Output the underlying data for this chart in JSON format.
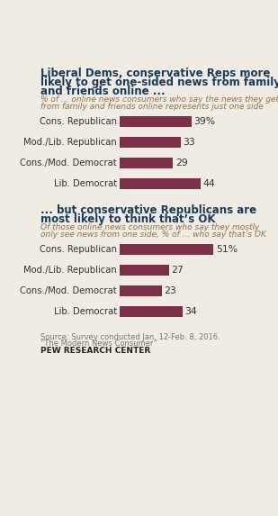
{
  "title1": "Liberal Dems, conservative Reps more\nlikely to get one-sided news from family\nand friends online ...",
  "subtitle1": "% of ... online news consumers who say the news they get\nfrom family and friends online represents just one side",
  "title2": "... but conservative Republicans are\nmost likely to think that’s OK",
  "subtitle2": "Of those online news consumers who say they mostly\nonly see news from one side, % of ... who say that’s OK",
  "categories": [
    "Cons. Republican",
    "Mod./Lib. Republican",
    "Cons./Mod. Democrat",
    "Lib. Democrat"
  ],
  "values1": [
    39,
    33,
    29,
    44
  ],
  "values2": [
    51,
    27,
    23,
    34
  ],
  "bar_color": "#7B3045",
  "title1_color": "#1a3a5c",
  "title2_color": "#1a3a5c",
  "subtitle_color": "#8B7355",
  "label_color": "#333333",
  "source_text": "Source: Survey conducted Jan. 12-Feb. 8, 2016.\n“The Modern News Consumer”",
  "pew_text": "PEW RESEARCH CENTER",
  "background_color": "#f0ece3",
  "max_val": 55
}
